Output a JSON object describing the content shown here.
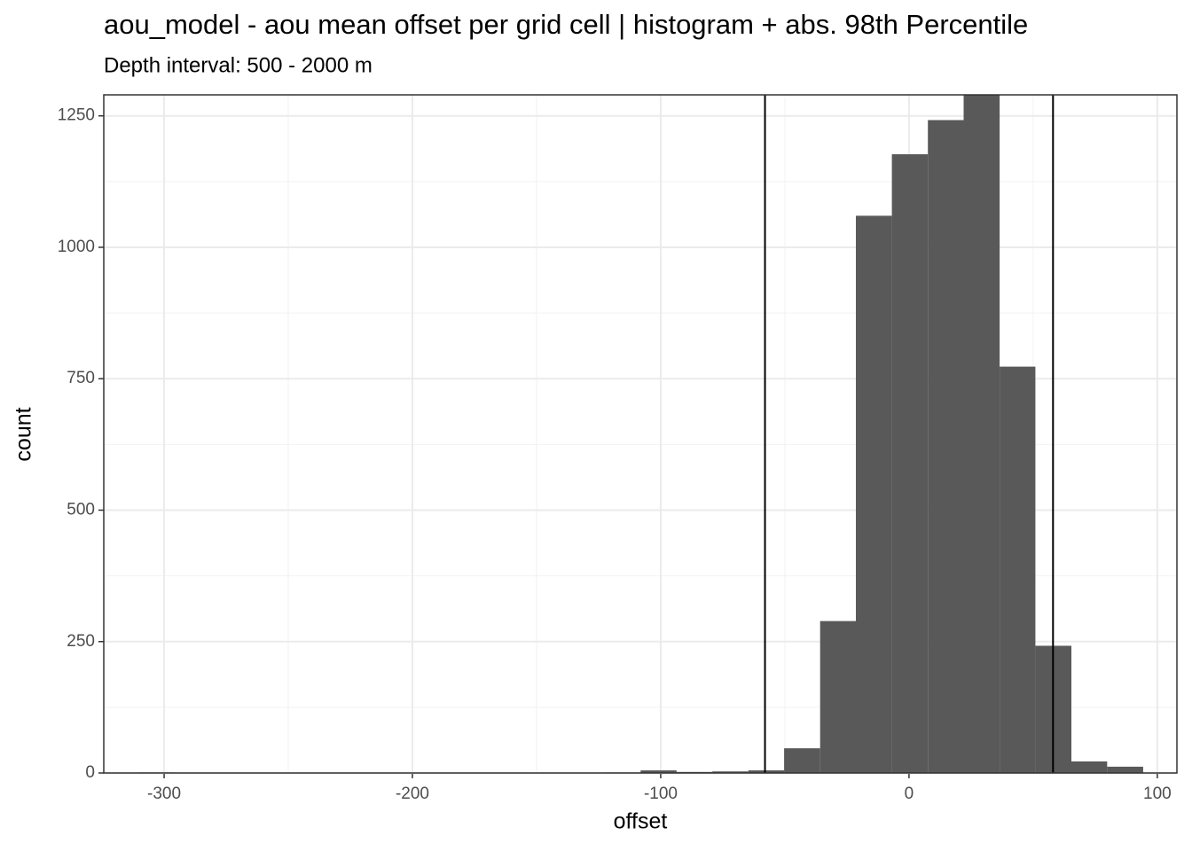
{
  "chart_data": {
    "type": "histogram",
    "title": "aou_model  -  aou mean offset per grid cell | histogram + abs. 98th Percentile",
    "subtitle": "Depth interval: 500 - 2000 m",
    "x_label": "offset",
    "y_label": "count",
    "bins": [
      -310.4,
      -295.9,
      -281.5,
      -267.0,
      -252.6,
      -238.1,
      -223.7,
      -209.2,
      -194.8,
      -180.3,
      -165.9,
      -151.4,
      -137.0,
      -122.5,
      -108.1,
      -93.6,
      -79.2,
      -64.7,
      -50.3,
      -35.8,
      -21.4,
      -6.9,
      7.6,
      22.0,
      36.5,
      50.9,
      65.4,
      79.8,
      94.3
    ],
    "counts": [
      1,
      0,
      0,
      0,
      0,
      0,
      0,
      0,
      0,
      0,
      0,
      0,
      0,
      1,
      5,
      2,
      3,
      5,
      47,
      289,
      1060,
      1177,
      1242,
      1290,
      773,
      242,
      22,
      12
    ],
    "color": "#595959",
    "vlines": [
      -58,
      58
    ],
    "xlim": [
      -324.3,
      107.9
    ],
    "ylim": [
      0,
      1290
    ],
    "xticks": [
      -300,
      -200,
      -100,
      0,
      100
    ],
    "yticks": [
      0,
      250,
      500,
      750,
      1000,
      1250
    ],
    "x_minor_grid": [
      -250,
      -150,
      -50,
      50
    ],
    "y_minor_grid": [
      125,
      375,
      625,
      875,
      1125
    ],
    "grid": true
  }
}
